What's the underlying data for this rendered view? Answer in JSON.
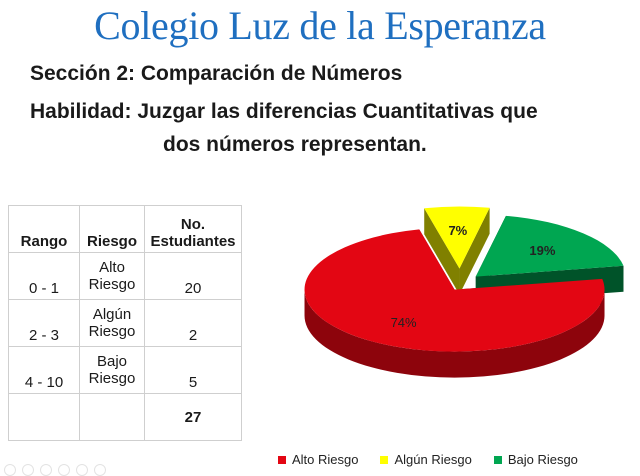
{
  "header": {
    "title": "Colegio Luz de la Esperanza",
    "section": "Sección 2:  Comparación de Números",
    "skill_line1": "Habilidad:  Juzgar las diferencias Cuantitativas que",
    "skill_line2": "dos números representan."
  },
  "table": {
    "headers": {
      "rango": "Rango",
      "riesgo": "Riesgo",
      "estudiantes_line1": "No.",
      "estudiantes_line2": "Estudiantes"
    },
    "rows": [
      {
        "rango": "0  -  1",
        "riesgo_line1": "Alto",
        "riesgo_line2": "Riesgo",
        "estudiantes": "20"
      },
      {
        "rango": "2  -  3",
        "riesgo_line1": "Algún",
        "riesgo_line2": "Riesgo",
        "estudiantes": "2"
      },
      {
        "rango": "4  - 10",
        "riesgo_line1": "Bajo",
        "riesgo_line2": "Riesgo",
        "estudiantes": "5"
      }
    ],
    "total": "27"
  },
  "chart_data": {
    "type": "pie",
    "categories": [
      "Alto Riesgo",
      "Algún Riesgo",
      "Bajo Riesgo"
    ],
    "values": [
      74,
      7,
      19
    ],
    "data_labels": [
      "74%",
      "7%",
      "19%"
    ],
    "colors": [
      "#e30613",
      "#ffff00",
      "#00a651"
    ],
    "legend_position": "bottom"
  }
}
